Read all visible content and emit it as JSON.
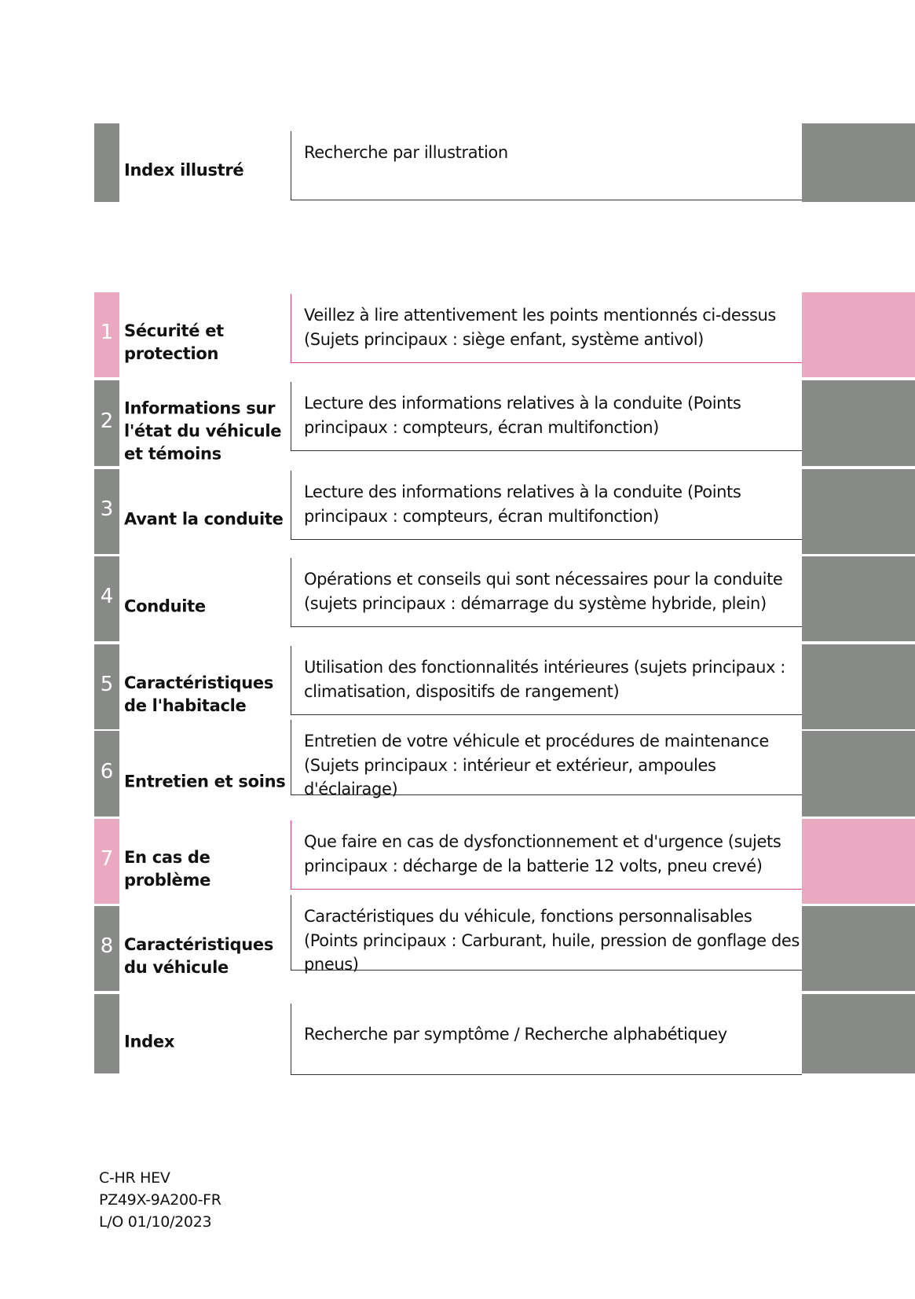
{
  "colors": {
    "gray": "#878a87",
    "pink": "#eaa9c0",
    "pink_line": "#d9407e",
    "gray_line": "#333333"
  },
  "sections": [
    {
      "number": "",
      "title": "Index illustré",
      "description": "Recherche par illustration",
      "color": "gray"
    },
    {
      "number": "1",
      "title": "Sécurité et protection",
      "description": "Veillez à lire attentivement les points mentionnés ci-dessus (Sujets principaux : siège enfant, système antivol)",
      "color": "pink"
    },
    {
      "number": "2",
      "title": "Informations sur l'état du véhicule et témoins",
      "description": "Lecture des informations relatives à la conduite (Points principaux : compteurs, écran multifonction)",
      "color": "gray"
    },
    {
      "number": "3",
      "title": "Avant la conduite",
      "description": "Lecture des informations relatives à la conduite (Points principaux : compteurs, écran multifonction)",
      "color": "gray"
    },
    {
      "number": "4",
      "title": "Conduite",
      "description": "Opérations et conseils qui sont nécessaires pour la conduite (sujets principaux : démarrage du système hybride, plein)",
      "color": "gray"
    },
    {
      "number": "5",
      "title": "Caractéristiques de l'habitacle",
      "description": "Utilisation des fonctionnalités intérieures (sujets principaux : climatisation, dispositifs de rangement)",
      "color": "gray"
    },
    {
      "number": "6",
      "title": "Entretien et soins",
      "description": "Entretien de votre véhicule et procédures de maintenance (Sujets principaux : intérieur et extérieur, ampoules d'éclairage)",
      "color": "gray"
    },
    {
      "number": "7",
      "title": "En cas de problème",
      "description": "Que faire en cas de dysfonctionnement et d'urgence (sujets principaux : décharge de la batterie 12 volts, pneu crevé)",
      "color": "pink"
    },
    {
      "number": "8",
      "title": "Caractéristiques du véhicule",
      "description": "Caractéristiques du véhicule, fonctions personnalisables (Points principaux : Carburant, huile, pression de gonflage des pneus)",
      "color": "gray"
    },
    {
      "number": "",
      "title": "Index",
      "description": "Recherche par symptôme / Recherche alphabétiquey",
      "color": "gray"
    }
  ],
  "footer": {
    "model": "C-HR HEV",
    "code": "PZ49X-9A200-FR",
    "date": "L/O 01/10/2023"
  }
}
